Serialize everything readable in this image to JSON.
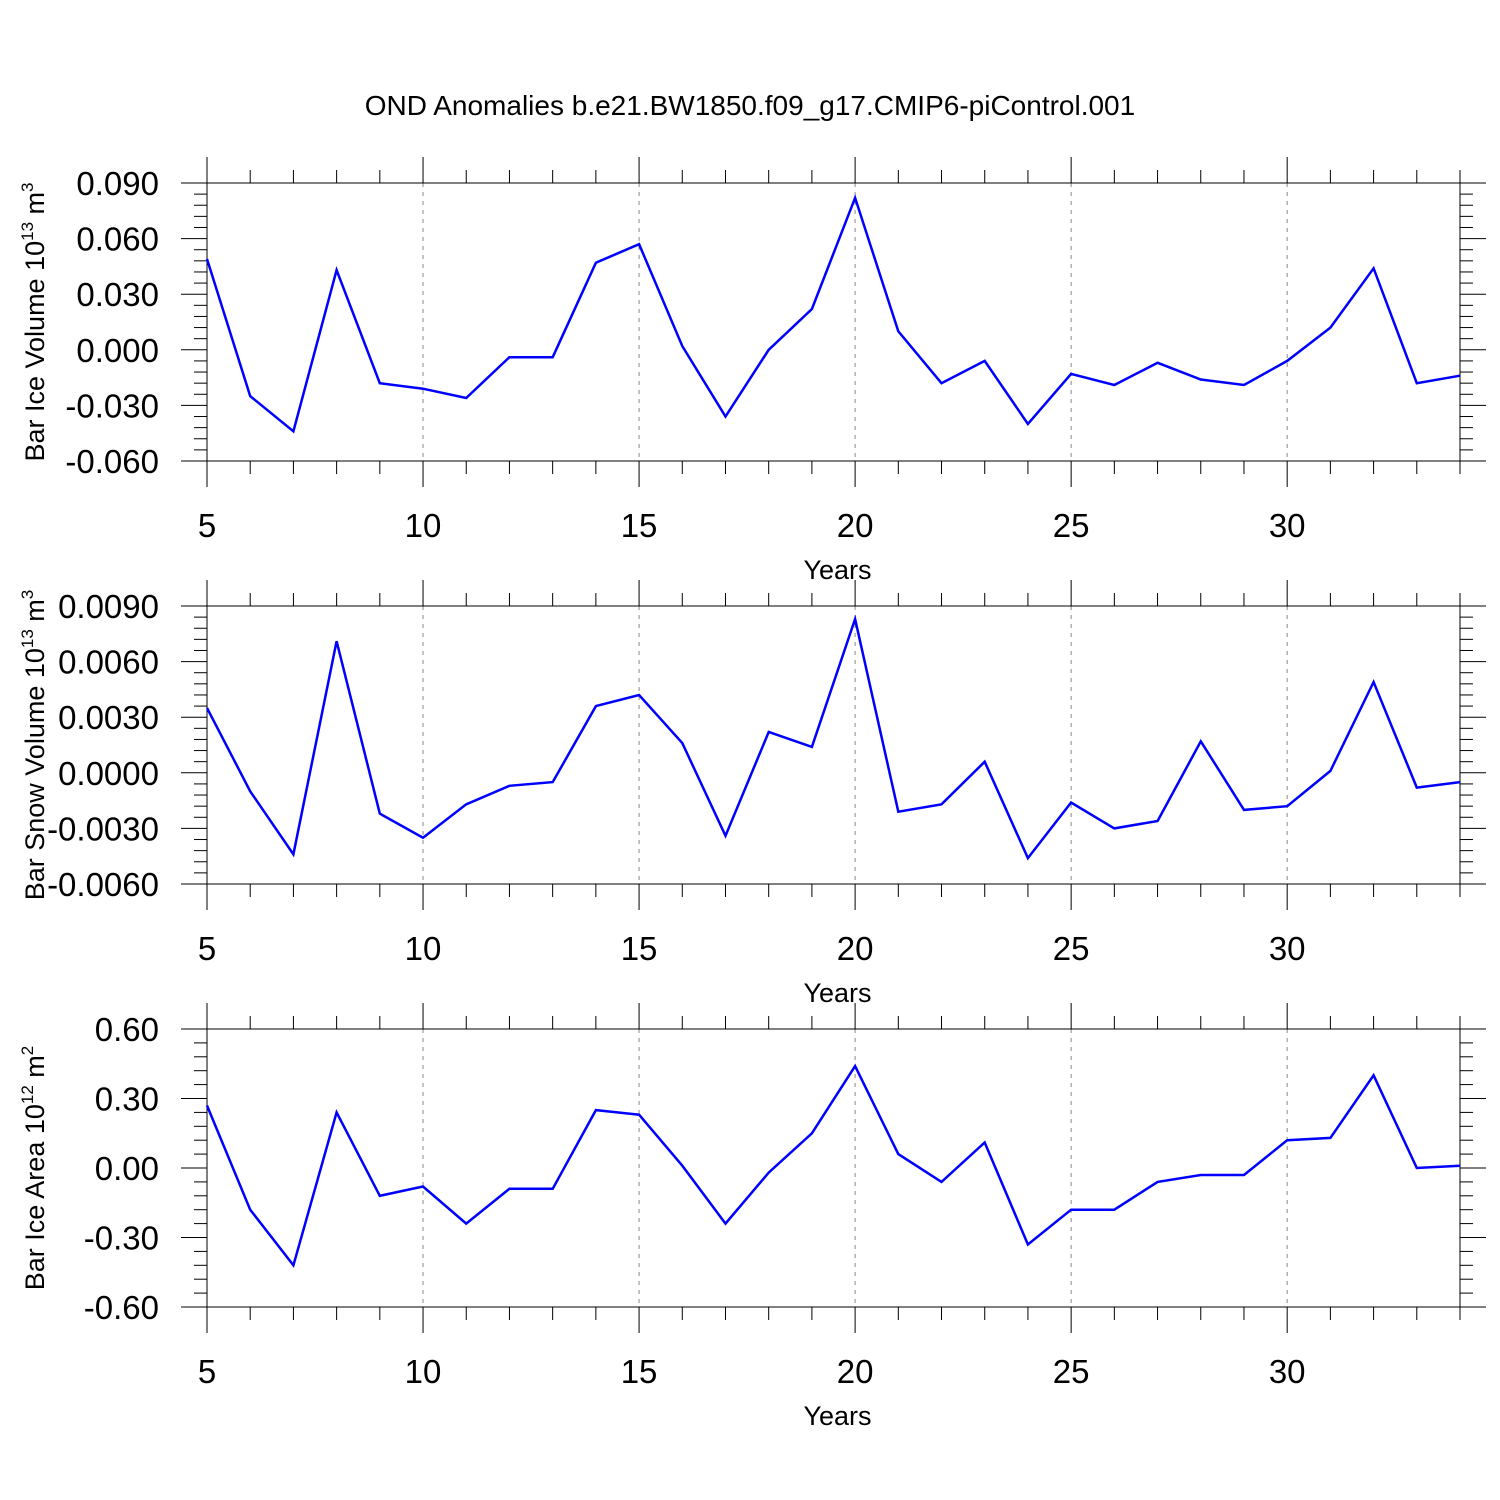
{
  "title": "OND Anomalies b.e21.BW1850.f09_g17.CMIP6-piControl.001",
  "chart_data": [
    {
      "type": "line",
      "ylabel": "Bar Ice Volume 10",
      "ylabel_exp": "13",
      "ylabel_unit": " m",
      "ylabel_unit_exp": "3",
      "xlabel": "Years",
      "xlim": [
        5,
        34
      ],
      "ylim": [
        -0.06,
        0.09
      ],
      "x_ticks": [
        5,
        10,
        15,
        20,
        25,
        30
      ],
      "x_tick_labels": [
        "5",
        "10",
        "15",
        "20",
        "25",
        "30"
      ],
      "y_ticks": [
        -0.06,
        -0.03,
        0.0,
        0.03,
        0.06,
        0.09
      ],
      "y_tick_labels": [
        "-0.060",
        "-0.030",
        "0.000",
        "0.030",
        "0.060",
        "0.090"
      ],
      "grid": "vertical dashed at major x ticks",
      "line_color": "#0000ff",
      "x": [
        5,
        6,
        7,
        8,
        9,
        10,
        11,
        12,
        13,
        14,
        15,
        16,
        17,
        18,
        19,
        20,
        21,
        22,
        23,
        24,
        25,
        26,
        27,
        28,
        29,
        30,
        31,
        32,
        33,
        34
      ],
      "values": [
        0.049,
        -0.025,
        -0.044,
        0.043,
        -0.018,
        -0.021,
        -0.026,
        -0.004,
        -0.004,
        0.047,
        0.057,
        0.002,
        -0.036,
        0.0,
        0.022,
        0.082,
        0.01,
        -0.018,
        -0.006,
        -0.04,
        -0.013,
        -0.019,
        -0.007,
        -0.016,
        -0.019,
        -0.006,
        0.012,
        0.044,
        -0.018,
        -0.014
      ]
    },
    {
      "type": "line",
      "ylabel": "Bar Snow Volume 10",
      "ylabel_exp": "13",
      "ylabel_unit": " m",
      "ylabel_unit_exp": "3",
      "xlabel": "Years",
      "xlim": [
        5,
        34
      ],
      "ylim": [
        -0.006,
        0.009
      ],
      "x_ticks": [
        5,
        10,
        15,
        20,
        25,
        30
      ],
      "x_tick_labels": [
        "5",
        "10",
        "15",
        "20",
        "25",
        "30"
      ],
      "y_ticks": [
        -0.006,
        -0.003,
        0.0,
        0.003,
        0.006,
        0.009
      ],
      "y_tick_labels": [
        "-0.0060",
        "-0.0030",
        "0.0000",
        "0.0030",
        "0.0060",
        "0.0090"
      ],
      "grid": "vertical dashed at major x ticks",
      "line_color": "#0000ff",
      "x": [
        5,
        6,
        7,
        8,
        9,
        10,
        11,
        12,
        13,
        14,
        15,
        16,
        17,
        18,
        19,
        20,
        21,
        22,
        23,
        24,
        25,
        26,
        27,
        28,
        29,
        30,
        31,
        32,
        33,
        34
      ],
      "values": [
        0.0035,
        -0.001,
        -0.0044,
        0.0071,
        -0.0022,
        -0.0035,
        -0.0017,
        -0.0007,
        -0.0005,
        0.0036,
        0.0042,
        0.0016,
        -0.0034,
        0.0022,
        0.0014,
        0.0083,
        -0.0021,
        -0.0017,
        0.0006,
        -0.0046,
        -0.0016,
        -0.003,
        -0.0026,
        0.0017,
        -0.002,
        -0.0018,
        0.0001,
        0.0049,
        -0.0008,
        -0.0005
      ]
    },
    {
      "type": "line",
      "ylabel": "Bar Ice Area 10",
      "ylabel_exp": "12",
      "ylabel_unit": " m",
      "ylabel_unit_exp": "2",
      "xlabel": "Years",
      "xlim": [
        5,
        34
      ],
      "ylim": [
        -0.6,
        0.6
      ],
      "x_ticks": [
        5,
        10,
        15,
        20,
        25,
        30
      ],
      "x_tick_labels": [
        "5",
        "10",
        "15",
        "20",
        "25",
        "30"
      ],
      "y_ticks": [
        -0.6,
        -0.3,
        0.0,
        0.3,
        0.6
      ],
      "y_tick_labels": [
        "-0.60",
        "-0.30",
        "0.00",
        "0.30",
        "0.60"
      ],
      "grid": "vertical dashed at major x ticks",
      "line_color": "#0000ff",
      "x": [
        5,
        6,
        7,
        8,
        9,
        10,
        11,
        12,
        13,
        14,
        15,
        16,
        17,
        18,
        19,
        20,
        21,
        22,
        23,
        24,
        25,
        26,
        27,
        28,
        29,
        30,
        31,
        32,
        33,
        34
      ],
      "values": [
        0.27,
        -0.18,
        -0.42,
        0.24,
        -0.12,
        -0.08,
        -0.24,
        -0.09,
        -0.09,
        0.25,
        0.23,
        0.01,
        -0.24,
        -0.02,
        0.15,
        0.44,
        0.06,
        -0.06,
        0.11,
        -0.33,
        -0.18,
        -0.18,
        -0.06,
        -0.03,
        -0.03,
        0.12,
        0.13,
        0.4,
        0.0,
        0.01
      ]
    }
  ]
}
